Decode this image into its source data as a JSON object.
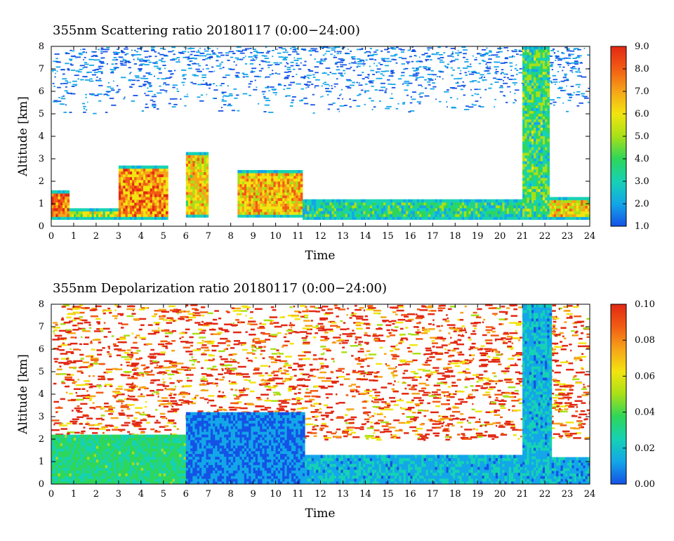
{
  "chart_data": [
    {
      "type": "heatmap",
      "title": "355nm Scattering ratio  20180117 (0:00−24:00)",
      "xlabel": "Time",
      "ylabel": "Altitude [km]",
      "x_ticks": [
        "0",
        "1",
        "2",
        "3",
        "4",
        "5",
        "6",
        "7",
        "8",
        "9",
        "10",
        "11",
        "12",
        "13",
        "14",
        "15",
        "16",
        "17",
        "18",
        "19",
        "20",
        "21",
        "22",
        "23",
        "24"
      ],
      "y_ticks": [
        "0",
        "1",
        "2",
        "3",
        "4",
        "5",
        "6",
        "7",
        "8"
      ],
      "xlim": [
        0,
        24
      ],
      "ylim": [
        0,
        8
      ],
      "colorbar": {
        "range": [
          1.0,
          9.0
        ],
        "ticks": [
          "1.0",
          "2.0",
          "3.0",
          "4.0",
          "5.0",
          "6.0",
          "7.0",
          "8.0",
          "9.0"
        ],
        "colors": [
          "#1452e6",
          "#13a6e8",
          "#16d2b4",
          "#2ed65a",
          "#a8e018",
          "#f2e410",
          "#f6a418",
          "#f25c14",
          "#e22814"
        ]
      },
      "features": {
        "noise_top_band": [
          5.0,
          8.0
        ],
        "low_cloud_layer": [
          {
            "x": [
              0,
              0.8
            ],
            "y": [
              0.3,
              1.6
            ],
            "value": 7.5
          },
          {
            "x": [
              0.8,
              3.0
            ],
            "y": [
              0.3,
              0.8
            ],
            "value": 5.0
          },
          {
            "x": [
              3.0,
              5.2
            ],
            "y": [
              0.3,
              2.7
            ],
            "value": 7.0
          },
          {
            "x": [
              6.0,
              7.0
            ],
            "y": [
              0.4,
              3.3
            ],
            "value": 6.0
          },
          {
            "x": [
              8.3,
              11.2
            ],
            "y": [
              0.4,
              2.5
            ],
            "value": 6.5
          },
          {
            "x": [
              11.2,
              21.0
            ],
            "y": [
              0.3,
              1.2
            ],
            "value": 3.5
          },
          {
            "x": [
              21.0,
              22.2
            ],
            "y": [
              0.3,
              8.0
            ],
            "value": 4.0
          },
          {
            "x": [
              22.2,
              24.0
            ],
            "y": [
              0.3,
              1.3
            ],
            "value": 6.0
          }
        ]
      }
    },
    {
      "type": "heatmap",
      "title": "355nm Depolarization ratio  20180117 (0:00−24:00)",
      "xlabel": "Time",
      "ylabel": "Altitude [km]",
      "x_ticks": [
        "0",
        "1",
        "2",
        "3",
        "4",
        "5",
        "6",
        "7",
        "8",
        "9",
        "10",
        "11",
        "12",
        "13",
        "14",
        "15",
        "16",
        "17",
        "18",
        "19",
        "20",
        "21",
        "22",
        "23",
        "24"
      ],
      "y_ticks": [
        "0",
        "1",
        "2",
        "3",
        "4",
        "5",
        "6",
        "7",
        "8"
      ],
      "xlim": [
        0,
        24
      ],
      "ylim": [
        0,
        8
      ],
      "colorbar": {
        "range": [
          0.0,
          0.1
        ],
        "ticks": [
          "0.00",
          "0.02",
          "0.04",
          "0.06",
          "0.08",
          "0.10"
        ],
        "colors": [
          "#1452e6",
          "#13a6e8",
          "#16d2b4",
          "#2ed65a",
          "#a8e018",
          "#f2e410",
          "#f6a418",
          "#f25c14",
          "#e22814"
        ]
      },
      "features": {
        "background_high": 0.09,
        "low_layer": [
          {
            "x": [
              0,
              6.0
            ],
            "y": [
              0.0,
              2.2
            ],
            "value": 0.035
          },
          {
            "x": [
              6.0,
              11.3
            ],
            "y": [
              0.0,
              3.2
            ],
            "value": 0.012
          },
          {
            "x": [
              11.3,
              21.0
            ],
            "y": [
              0.0,
              1.3
            ],
            "value": 0.02
          },
          {
            "x": [
              21.0,
              22.3
            ],
            "y": [
              0.0,
              8.0
            ],
            "value": 0.02
          },
          {
            "x": [
              22.3,
              24.0
            ],
            "y": [
              0.0,
              1.2
            ],
            "value": 0.018
          }
        ]
      }
    }
  ]
}
